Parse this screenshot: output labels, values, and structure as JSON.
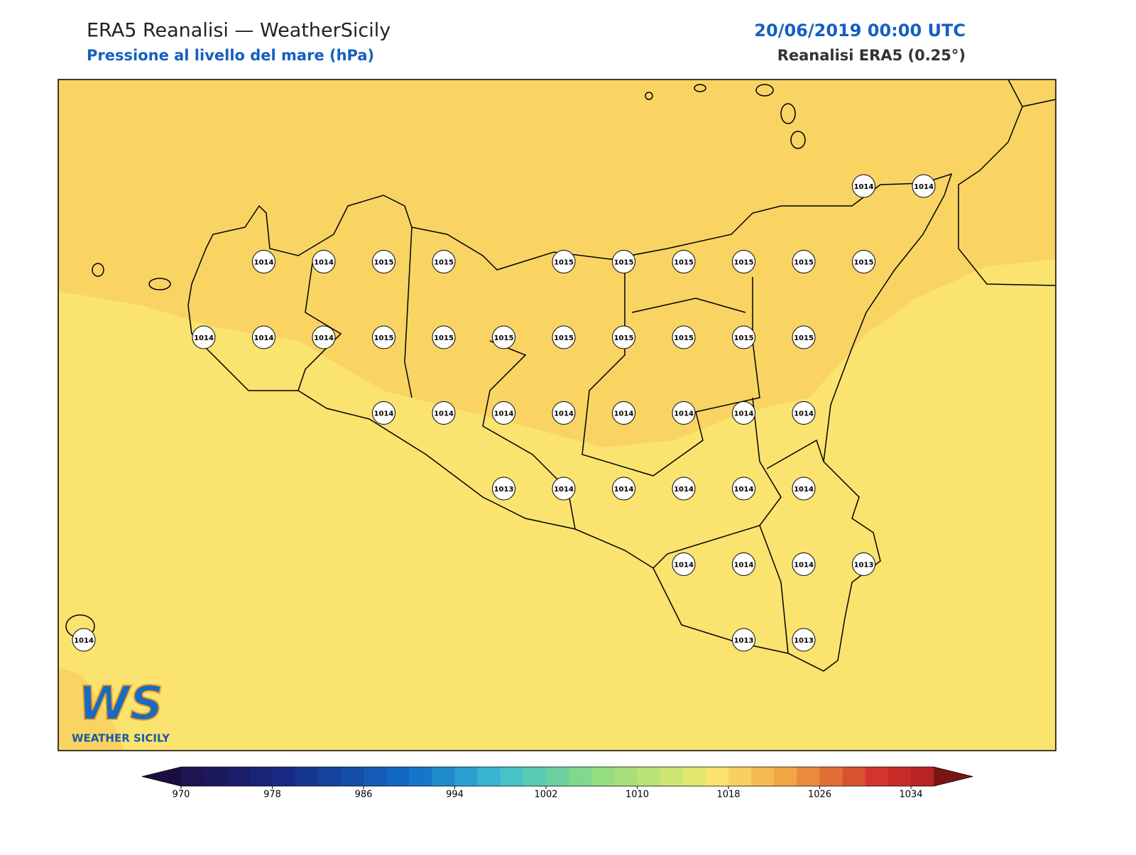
{
  "header": {
    "title": "ERA5 Reanalisi — WeatherSicily",
    "subtitle": "Pressione al livello del mare (hPa)",
    "date": "20/06/2019 00:00 UTC",
    "source": "Reanalisi ERA5 (0.25°)"
  },
  "stations": [
    1014,
    1014,
    1014,
    1014,
    1015,
    1015,
    1015,
    1015,
    1015,
    1015,
    1015,
    1015,
    1014,
    1014,
    1014,
    1015,
    1015,
    1015,
    1015,
    1015,
    1015,
    1015,
    1015,
    1014,
    1014,
    1014,
    1014,
    1014,
    1014,
    1014,
    1014,
    1013,
    1014,
    1014,
    1014,
    1014,
    1014,
    1014,
    1014,
    1014,
    1013,
    1014,
    1013,
    1013
  ],
  "colorbar": {
    "ticks": [
      970,
      978,
      986,
      994,
      1002,
      1010,
      1018,
      1026,
      1034
    ]
  },
  "logo": {
    "mark": "WS",
    "name": "WEATHER SICILY"
  }
}
